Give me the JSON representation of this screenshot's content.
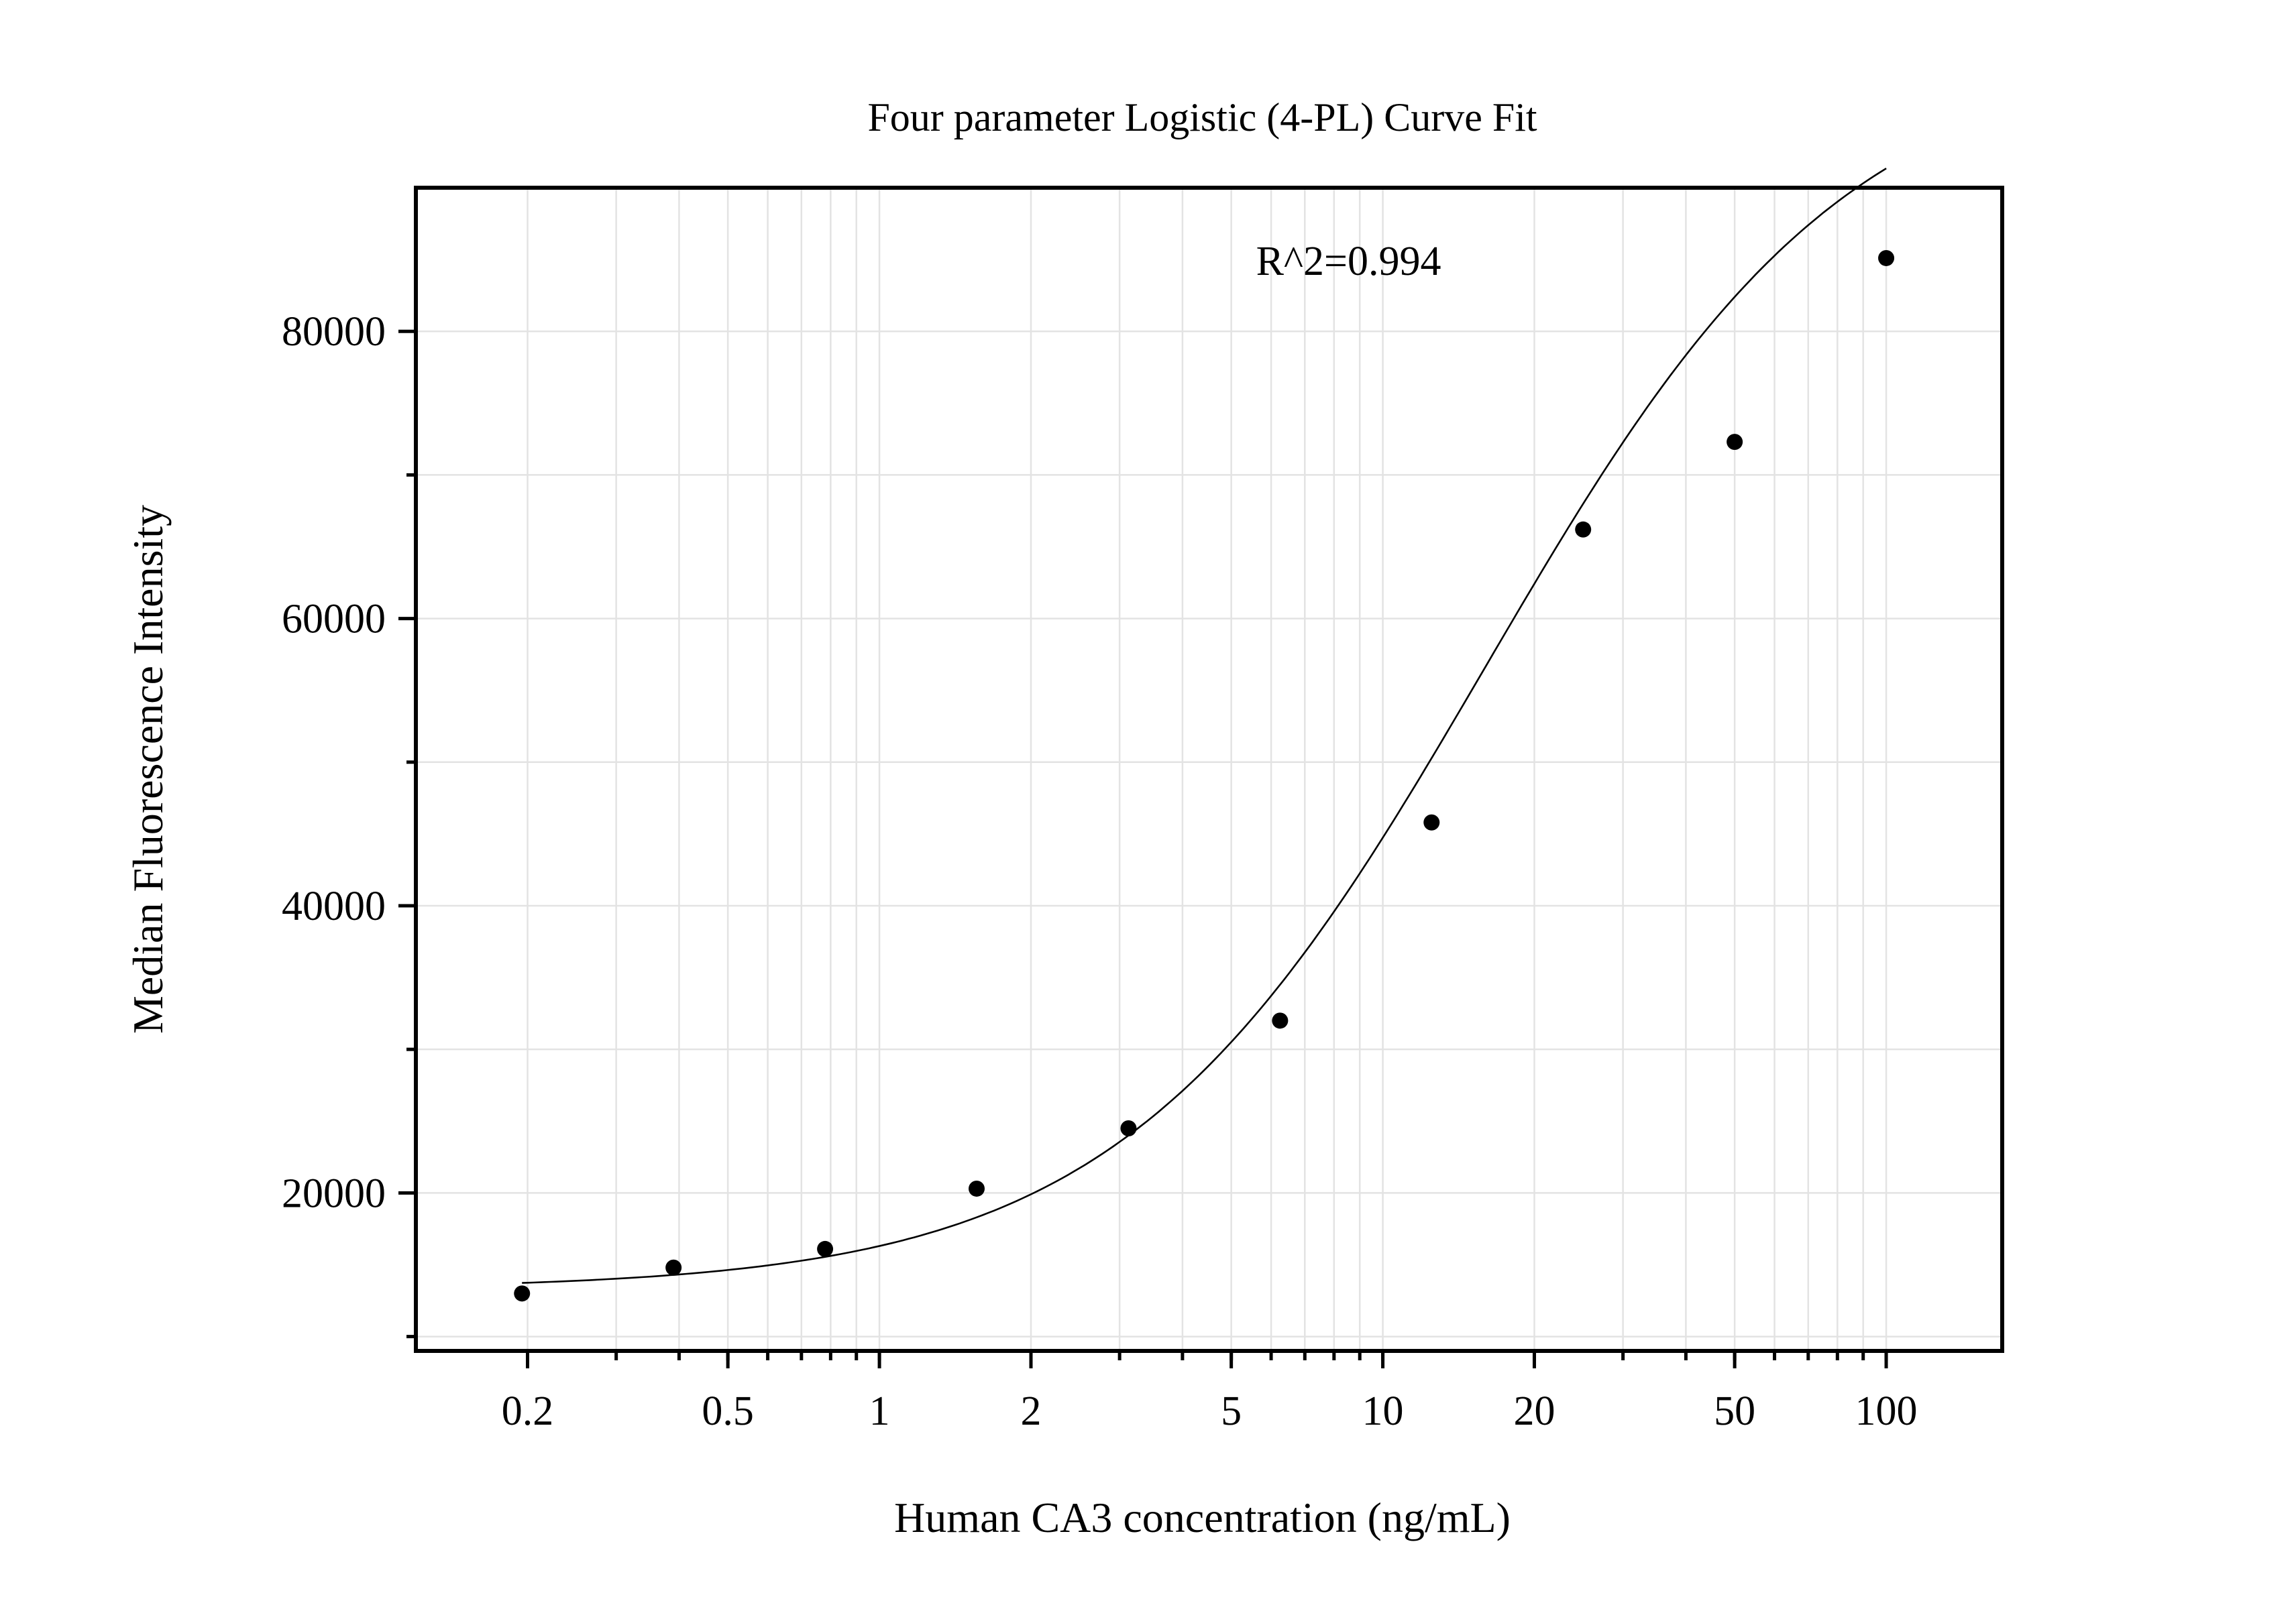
{
  "chart_data": {
    "type": "scatter",
    "title": "Four parameter Logistic (4-PL) Curve Fit",
    "xlabel": "Human CA3 concentration (ng/mL)",
    "ylabel": "Median Fluorescence Intensity",
    "x_scale": "log",
    "xlim": [
      0.12,
      170
    ],
    "ylim": [
      9000,
      90000
    ],
    "x_ticks": [
      0.2,
      0.5,
      1,
      2,
      5,
      10,
      20,
      50,
      100
    ],
    "x_tick_labels": [
      "0.2",
      "0.5",
      "1",
      "2",
      "5",
      "10",
      "20",
      "50",
      "100"
    ],
    "y_ticks": [
      20000,
      40000,
      60000,
      80000
    ],
    "y_tick_labels": [
      "20000",
      "40000",
      "60000",
      "80000"
    ],
    "grid": true,
    "annotation": "R^2=0.994",
    "series": [
      {
        "type": "scatter",
        "x": [
          0.195,
          0.39,
          0.78,
          1.56,
          3.125,
          6.25,
          12.5,
          25,
          50,
          100
        ],
        "y": [
          13000,
          14800,
          16100,
          20300,
          24500,
          32000,
          45800,
          66200,
          72300,
          85100
        ]
      },
      {
        "type": "line",
        "fit": "4PL",
        "params": {
          "A": 13300,
          "B": 1.2,
          "C": 16,
          "D": 100000
        },
        "x_range": [
          0.195,
          100
        ]
      }
    ]
  }
}
